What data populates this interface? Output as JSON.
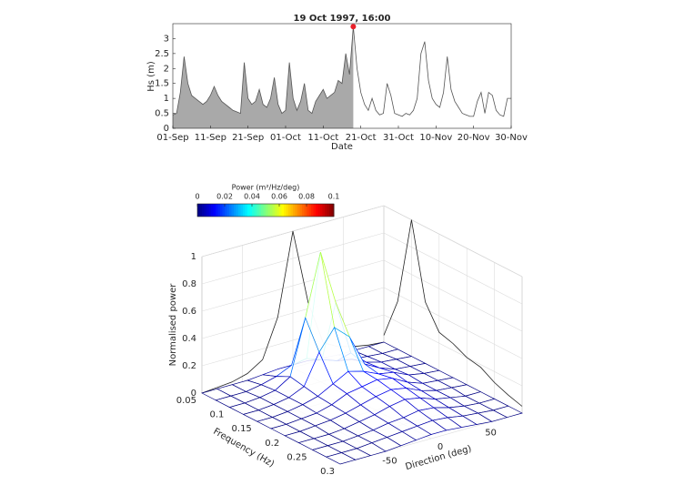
{
  "chart_data": [
    {
      "type": "area",
      "title": "19 Oct 1997, 16:00",
      "xlabel": "Date",
      "ylabel": "Hs (m)",
      "x": [
        0,
        1,
        2,
        3,
        4,
        5,
        6,
        7,
        8,
        9,
        10,
        11,
        12,
        13,
        14,
        15,
        16,
        17,
        18,
        19,
        20,
        21,
        22,
        23,
        24,
        25,
        26,
        27,
        28,
        29,
        30,
        31,
        32,
        33,
        34,
        35,
        36,
        37,
        38,
        39,
        40,
        41,
        42,
        43,
        44,
        45,
        46,
        47,
        48,
        49,
        50,
        51,
        52,
        53,
        54,
        55,
        56,
        57,
        58,
        59,
        60,
        61,
        62,
        63,
        64,
        65,
        66,
        67,
        68,
        69,
        70,
        71,
        72,
        73,
        74,
        75,
        76,
        77,
        78,
        79,
        80,
        81,
        82,
        83,
        84,
        85,
        86,
        87,
        88,
        89,
        90
      ],
      "values": [
        0.45,
        0.5,
        1.2,
        2.4,
        1.5,
        1.1,
        1.0,
        0.9,
        0.8,
        0.9,
        1.1,
        1.4,
        1.1,
        0.9,
        0.8,
        0.7,
        0.6,
        0.55,
        0.5,
        2.2,
        1.0,
        0.8,
        0.9,
        1.3,
        0.8,
        0.7,
        1.0,
        1.7,
        0.8,
        0.5,
        0.6,
        2.2,
        1.0,
        0.6,
        0.9,
        1.5,
        0.6,
        0.5,
        0.9,
        1.1,
        1.3,
        1.0,
        1.1,
        1.2,
        1.6,
        1.5,
        2.5,
        1.8,
        3.4,
        2.0,
        1.2,
        0.8,
        0.6,
        1.0,
        0.6,
        0.45,
        0.5,
        1.5,
        1.1,
        0.5,
        0.45,
        0.4,
        0.5,
        0.45,
        0.6,
        1.0,
        2.5,
        2.9,
        1.6,
        1.0,
        0.8,
        0.7,
        1.2,
        2.4,
        1.3,
        0.9,
        0.7,
        0.5,
        0.45,
        0.4,
        0.4,
        0.9,
        1.2,
        0.5,
        1.2,
        1.1,
        0.6,
        0.45,
        0.4,
        1.0,
        1.0
      ],
      "marker_x": 48,
      "color": "#a9a9a9",
      "line_color": "#555555",
      "marker_color": "#e8202a",
      "xlim": [
        0,
        90
      ],
      "xticks": [
        {
          "value": 0,
          "label": "01-Sep"
        },
        {
          "value": 10,
          "label": "11-Sep"
        },
        {
          "value": 20,
          "label": "21-Sep"
        },
        {
          "value": 30,
          "label": "01-Oct"
        },
        {
          "value": 40,
          "label": "11-Oct"
        },
        {
          "value": 50,
          "label": "21-Oct"
        },
        {
          "value": 60,
          "label": "31-Oct"
        },
        {
          "value": 70,
          "label": "10-Nov"
        },
        {
          "value": 80,
          "label": "20-Nov"
        },
        {
          "value": 90,
          "label": "30-Nov"
        }
      ],
      "ylim": [
        0,
        3.5
      ],
      "yticks": [
        0,
        0.5,
        1,
        1.5,
        2,
        2.5,
        3
      ]
    },
    {
      "type": "surface",
      "colorbar_title": "Power (m²/Hz/deg)",
      "colormap": "jet",
      "clim": [
        0,
        0.1
      ],
      "cticks": [
        0,
        0.02,
        0.04,
        0.06,
        0.08,
        0.1
      ],
      "xlabel": "Frequency (Hz)",
      "ylabel": "Direction (deg)",
      "zlabel": "Normalised power",
      "frequencies": [
        0.05,
        0.075,
        0.1,
        0.125,
        0.15,
        0.175,
        0.2,
        0.225,
        0.25,
        0.275,
        0.3
      ],
      "directions": [
        -90,
        -75,
        -60,
        -45,
        -30,
        -15,
        0,
        15,
        30,
        45,
        60,
        75,
        90
      ],
      "power": [
        [
          0,
          0,
          0,
          0,
          0.01,
          0.02,
          0.02,
          0.02,
          0.01,
          0,
          0,
          0,
          0
        ],
        [
          0,
          0,
          0,
          0.02,
          0.05,
          0.1,
          0.12,
          0.08,
          0.04,
          0.02,
          0.01,
          0,
          0
        ],
        [
          0,
          0,
          0.01,
          0.03,
          0.1,
          0.5,
          0.95,
          0.55,
          0.15,
          0.05,
          0.02,
          0.01,
          0
        ],
        [
          0,
          0,
          0.01,
          0.03,
          0.08,
          0.3,
          0.45,
          0.35,
          0.12,
          0.06,
          0.02,
          0.01,
          0
        ],
        [
          0,
          0,
          0.01,
          0.03,
          0.06,
          0.12,
          0.18,
          0.15,
          0.1,
          0.08,
          0.03,
          0.01,
          0
        ],
        [
          0,
          0,
          0.01,
          0.02,
          0.05,
          0.1,
          0.12,
          0.14,
          0.12,
          0.06,
          0.02,
          0.01,
          0
        ],
        [
          0,
          0,
          0.01,
          0.02,
          0.04,
          0.07,
          0.1,
          0.12,
          0.1,
          0.05,
          0.02,
          0.01,
          0
        ],
        [
          0,
          0,
          0,
          0.01,
          0.03,
          0.05,
          0.08,
          0.1,
          0.08,
          0.04,
          0.02,
          0,
          0
        ],
        [
          0,
          0,
          0,
          0.01,
          0.02,
          0.04,
          0.05,
          0.07,
          0.06,
          0.03,
          0.01,
          0,
          0
        ],
        [
          0,
          0,
          0,
          0.01,
          0.02,
          0.03,
          0.04,
          0.05,
          0.04,
          0.02,
          0.01,
          0,
          0
        ],
        [
          0,
          0,
          0,
          0,
          0.01,
          0.02,
          0.03,
          0.03,
          0.02,
          0.01,
          0,
          0,
          0
        ]
      ],
      "frequency_marginal": [
        0.05,
        0.35,
        1,
        0.45,
        0.28,
        0.25,
        0.2,
        0.18,
        0.12,
        0.08,
        0.05
      ],
      "direction_marginal": [
        0,
        0.01,
        0.02,
        0.05,
        0.12,
        0.4,
        1,
        0.45,
        0.12,
        0.06,
        0.03,
        0.01,
        0
      ],
      "xlim": [
        0.05,
        0.3
      ],
      "xticks": [
        0.05,
        0.1,
        0.15,
        0.2,
        0.25,
        0.3
      ],
      "ylim": [
        -90,
        90
      ],
      "yticks": [
        -50,
        0,
        50
      ],
      "zlim": [
        0,
        1
      ],
      "zticks": [
        0,
        0.2,
        0.4,
        0.6,
        0.8,
        1
      ]
    }
  ]
}
